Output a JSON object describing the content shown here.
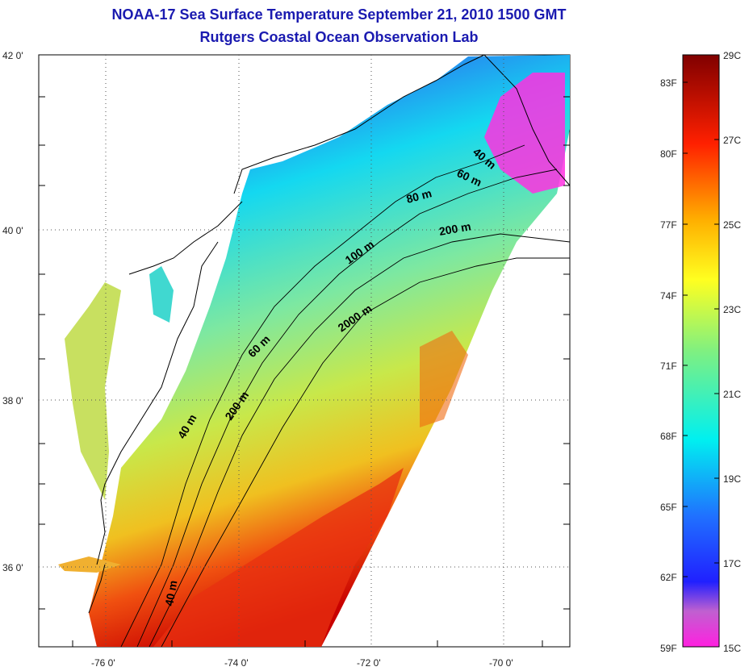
{
  "title": "NOAA-17 Sea Surface Temperature September 21, 2010 1500 GMT",
  "subtitle": "Rutgers Coastal Ocean Observation Lab",
  "map": {
    "lat_ticks": [
      "42 0'",
      "40 0'",
      "38 0'",
      "36 0'"
    ],
    "lon_ticks": [
      "-76 0'",
      "-74 0'",
      "-72 0'",
      "-70 0'"
    ],
    "contour_labels": [
      "40 m",
      "60 m",
      "80 m",
      "200 m",
      "100 m",
      "2000 m",
      "60 m",
      "200 m",
      "40 m",
      "40 m"
    ]
  },
  "colorbar": {
    "celsius_labels": [
      "29C",
      "27C",
      "25C",
      "23C",
      "21C",
      "19C",
      "17C",
      "15C"
    ],
    "fahrenheit_labels": [
      "83F",
      "80F",
      "77F",
      "74F",
      "71F",
      "68F",
      "65F",
      "62F",
      "59F"
    ],
    "colors": [
      "#ff00ff",
      "#0000ff",
      "#00ffff",
      "#ffff00",
      "#ff0000",
      "#800000"
    ]
  }
}
